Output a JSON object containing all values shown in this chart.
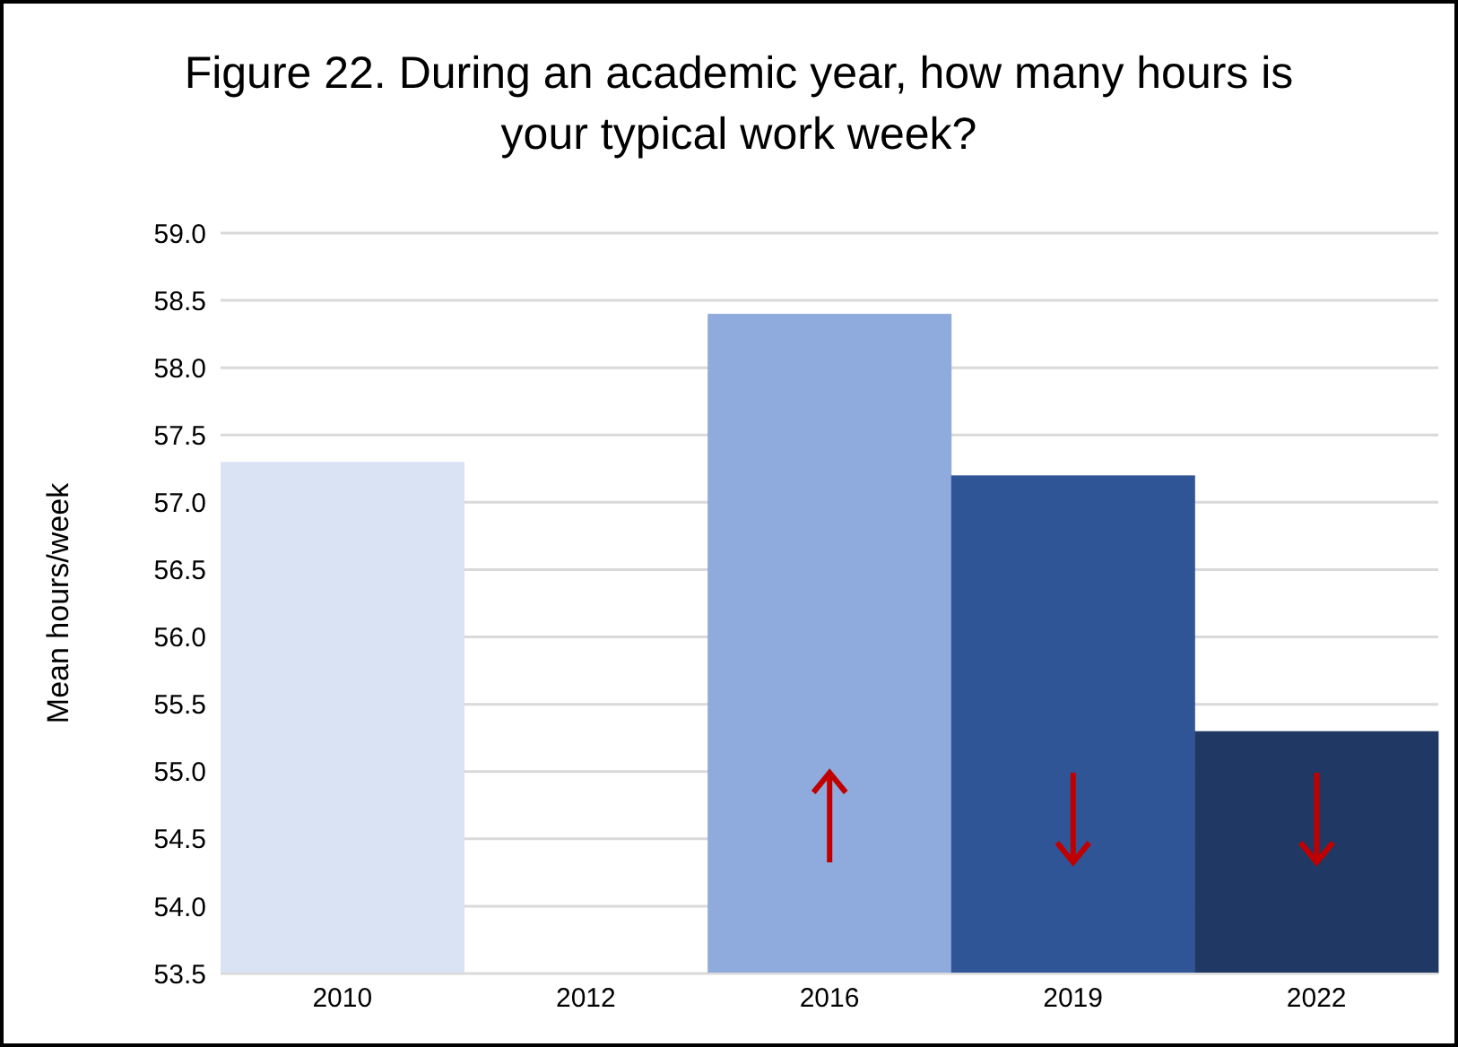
{
  "chart_data": {
    "type": "bar",
    "title": "Figure 22. During an academic year, how many hours is your typical work week?",
    "ylabel": "Mean hours/week",
    "categories": [
      "2010",
      "2012",
      "2016",
      "2019",
      "2022"
    ],
    "values": [
      57.3,
      null,
      58.4,
      57.2,
      55.3
    ],
    "colors": [
      "#dae3f3",
      "#dae3f3",
      "#8faadc",
      "#2f5597",
      "#203864"
    ],
    "ylim": [
      53.5,
      59.0
    ],
    "yticks": [
      {
        "value": 53.5,
        "label": "53.5"
      },
      {
        "value": 54,
        "label": "54.0"
      },
      {
        "value": 54.5,
        "label": "54.5"
      },
      {
        "value": 55,
        "label": "55.0"
      },
      {
        "value": 55.5,
        "label": "55.5"
      },
      {
        "value": 56,
        "label": "56.0"
      },
      {
        "value": 56.5,
        "label": "56.5"
      },
      {
        "value": 57,
        "label": "57.0"
      },
      {
        "value": 57.5,
        "label": "57.5"
      },
      {
        "value": 58,
        "label": "58.0"
      },
      {
        "value": 58.5,
        "label": "58.5"
      },
      {
        "value": 59,
        "label": "59.0"
      }
    ],
    "grid": "y"
  }
}
